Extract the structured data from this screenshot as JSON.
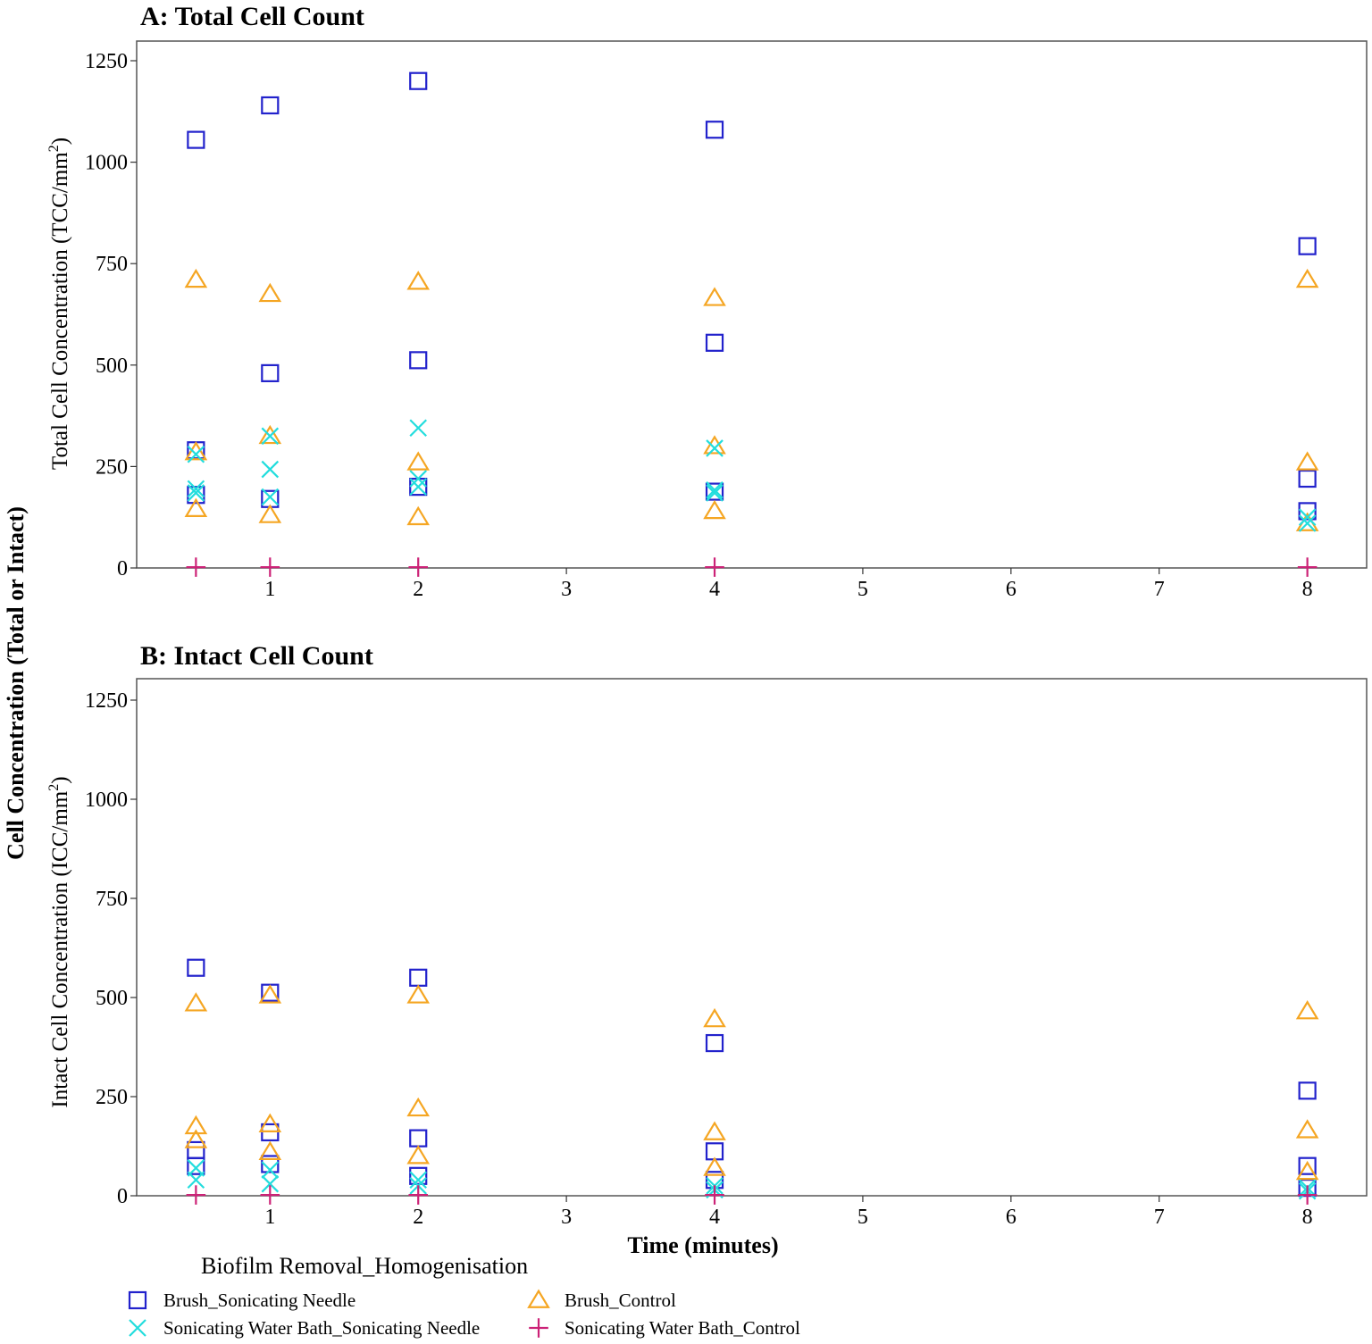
{
  "chart_data": [
    {
      "type": "scatter",
      "title": "A: Total Cell Count",
      "ylabel": "Total Cell Concentration (TCC/mm",
      "ylabel_sup": "2",
      "ylabel_end": ")",
      "xlabel": "",
      "xlim": [
        0.1,
        8.4
      ],
      "ylim": [
        0,
        1250
      ],
      "xticks": [
        1,
        2,
        3,
        4,
        5,
        6,
        7,
        8
      ],
      "yticks": [
        0,
        250,
        500,
        750,
        1000,
        1250
      ],
      "series": [
        {
          "name": "Brush_Sonicating Needle",
          "color": "#2222cc",
          "marker": "square",
          "points": [
            [
              0.5,
              1055
            ],
            [
              0.5,
              290
            ],
            [
              0.5,
              180
            ],
            [
              1,
              1140
            ],
            [
              1,
              480
            ],
            [
              1,
              170
            ],
            [
              2,
              1200
            ],
            [
              2,
              512
            ],
            [
              2,
              200
            ],
            [
              4,
              1080
            ],
            [
              4,
              555
            ],
            [
              4,
              188
            ],
            [
              8,
              793
            ],
            [
              8,
              220
            ],
            [
              8,
              140
            ]
          ]
        },
        {
          "name": "Brush_Control",
          "color": "#f5a623",
          "marker": "triangle",
          "points": [
            [
              0.5,
              710
            ],
            [
              0.5,
              285
            ],
            [
              0.5,
              145
            ],
            [
              1,
              675
            ],
            [
              1,
              325
            ],
            [
              1,
              130
            ],
            [
              2,
              705
            ],
            [
              2,
              260
            ],
            [
              2,
              125
            ],
            [
              4,
              665
            ],
            [
              4,
              300
            ],
            [
              4,
              140
            ],
            [
              8,
              710
            ],
            [
              8,
              260
            ],
            [
              8,
              110
            ]
          ]
        },
        {
          "name": "Sonicating Water Bath_Sonicating Needle",
          "color": "#22dddd",
          "marker": "x",
          "points": [
            [
              0.5,
              280
            ],
            [
              0.5,
              195
            ],
            [
              0.5,
              185
            ],
            [
              1,
              325
            ],
            [
              1,
              243
            ],
            [
              1,
              175
            ],
            [
              2,
              345
            ],
            [
              2,
              220
            ],
            [
              2,
              200
            ],
            [
              4,
              295
            ],
            [
              4,
              192
            ],
            [
              4,
              185
            ],
            [
              8,
              125
            ],
            [
              8,
              110
            ]
          ]
        },
        {
          "name": "Sonicating Water Bath_Control",
          "color": "#cc2277",
          "marker": "plus",
          "points": [
            [
              0.5,
              2
            ],
            [
              1,
              2
            ],
            [
              2,
              2
            ],
            [
              4,
              2
            ],
            [
              8,
              2
            ]
          ]
        }
      ]
    },
    {
      "type": "scatter",
      "title": "B: Intact Cell Count",
      "ylabel": "Intact Cell Concentration (ICC/mm",
      "ylabel_sup": "2",
      "ylabel_end": ")",
      "xlabel": "Time (minutes)",
      "xlim": [
        0.1,
        8.4
      ],
      "ylim": [
        0,
        1250
      ],
      "xticks": [
        1,
        2,
        3,
        4,
        5,
        6,
        7,
        8
      ],
      "yticks": [
        0,
        250,
        500,
        750,
        1000,
        1250
      ],
      "series": [
        {
          "name": "Brush_Sonicating Needle",
          "color": "#2222cc",
          "marker": "square",
          "points": [
            [
              0.5,
              575
            ],
            [
              0.5,
              115
            ],
            [
              0.5,
              75
            ],
            [
              1,
              512
            ],
            [
              1,
              160
            ],
            [
              1,
              80
            ],
            [
              2,
              550
            ],
            [
              2,
              145
            ],
            [
              2,
              50
            ],
            [
              4,
              385
            ],
            [
              4,
              112
            ],
            [
              4,
              40
            ],
            [
              8,
              265
            ],
            [
              8,
              75
            ],
            [
              8,
              20
            ]
          ]
        },
        {
          "name": "Brush_Control",
          "color": "#f5a623",
          "marker": "triangle",
          "points": [
            [
              0.5,
              485
            ],
            [
              0.5,
              175
            ],
            [
              0.5,
              140
            ],
            [
              1,
              505
            ],
            [
              1,
              180
            ],
            [
              1,
              110
            ],
            [
              2,
              505
            ],
            [
              2,
              220
            ],
            [
              2,
              100
            ],
            [
              4,
              445
            ],
            [
              4,
              160
            ],
            [
              4,
              70
            ],
            [
              8,
              465
            ],
            [
              8,
              165
            ],
            [
              8,
              60
            ]
          ]
        },
        {
          "name": "Sonicating Water Bath_Sonicating Needle",
          "color": "#22dddd",
          "marker": "x",
          "points": [
            [
              0.5,
              70
            ],
            [
              0.5,
              40
            ],
            [
              1,
              65
            ],
            [
              1,
              30
            ],
            [
              2,
              40
            ],
            [
              2,
              25
            ],
            [
              4,
              25
            ],
            [
              4,
              15
            ],
            [
              8,
              20
            ],
            [
              8,
              12
            ]
          ]
        },
        {
          "name": "Sonicating Water Bath_Control",
          "color": "#cc2277",
          "marker": "plus",
          "points": [
            [
              0.5,
              2
            ],
            [
              1,
              2
            ],
            [
              2,
              2
            ],
            [
              4,
              2
            ],
            [
              8,
              2
            ]
          ]
        }
      ]
    }
  ],
  "shared_ylabel": "Cell Concentration (Total or Intact)",
  "legend": {
    "title": "Biofilm Removal_Homogenisation",
    "placement": "bottom",
    "items": [
      {
        "label": "Brush_Sonicating Needle",
        "color": "#2222cc",
        "marker": "square"
      },
      {
        "label": "Brush_Control",
        "color": "#f5a623",
        "marker": "triangle"
      },
      {
        "label": "Sonicating Water Bath_Sonicating Needle",
        "color": "#22dddd",
        "marker": "x"
      },
      {
        "label": "Sonicating Water Bath_Control",
        "color": "#cc2277",
        "marker": "plus"
      }
    ]
  }
}
